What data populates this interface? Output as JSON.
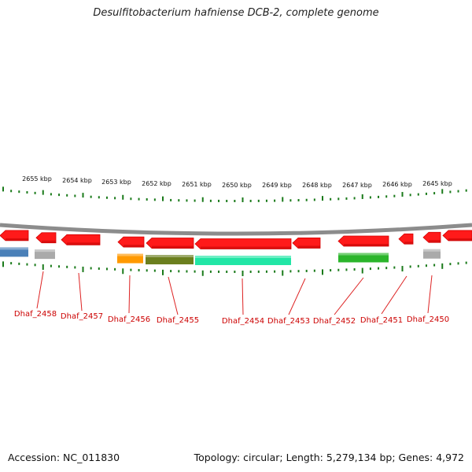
{
  "title": "Desulfitobacterium hafniense DCB-2, complete genome",
  "footer": {
    "accession": "Accession: NC_011830",
    "summary": "Topology: circular; Length: 5,279,134 bp; Genes: 4,972"
  },
  "colors": {
    "tick": "#1a7a1a",
    "backbone": "#8c8c8c",
    "gene_forward": "#ff1a1a",
    "label": "#cc0000",
    "leader": "#dd2222"
  },
  "kbp_labels": [
    "2655 kbp",
    "2654 kbp",
    "2653 kbp",
    "2652 kbp",
    "2651 kbp",
    "2650 kbp",
    "2649 kbp",
    "2648 kbp",
    "2647 kbp",
    "2646 kbp",
    "2645 kbp"
  ],
  "gene_labels": [
    "Dhaf_2458",
    "Dhaf_2457",
    "Dhaf_2456",
    "Dhaf_2455",
    "Dhaf_2454",
    "Dhaf_2453",
    "Dhaf_2452",
    "Dhaf_2451",
    "Dhaf_2450"
  ],
  "feature_colors": {
    "steelblue": "#4a80b8",
    "gray": "#aaaaaa",
    "orange": "#ff9900",
    "olive": "#6b7f1e",
    "aqua": "#22e6a6",
    "green": "#2bb52b"
  }
}
